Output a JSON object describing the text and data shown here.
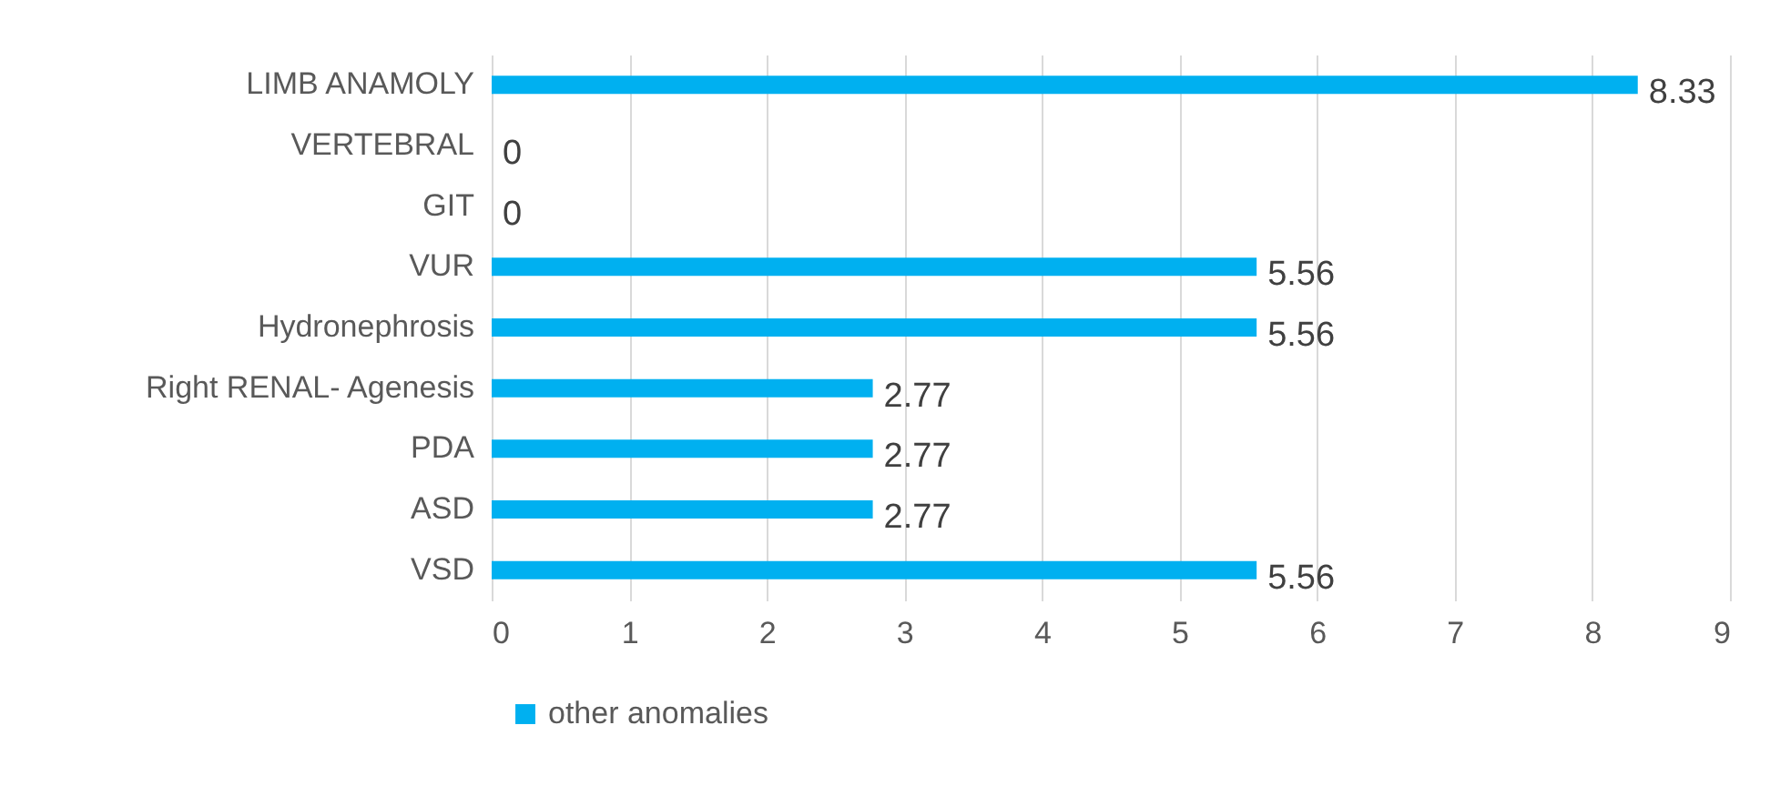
{
  "chart_data": {
    "type": "bar",
    "orientation": "horizontal",
    "categories": [
      "LIMB ANAMOLY",
      "VERTEBRAL",
      "GIT",
      "VUR",
      "Hydronephrosis",
      "Right RENAL- Agenesis",
      "PDA",
      "ASD",
      "VSD"
    ],
    "series": [
      {
        "name": "other anomalies",
        "color": "#00b0f0",
        "values": [
          8.33,
          0,
          0,
          5.56,
          5.56,
          2.77,
          2.77,
          2.77,
          5.56
        ]
      }
    ],
    "xlim": [
      0,
      9
    ],
    "xticks": [
      0,
      1,
      2,
      3,
      4,
      5,
      6,
      7,
      8,
      9
    ],
    "grid": "x",
    "legend": "bottom",
    "data_labels": true
  }
}
